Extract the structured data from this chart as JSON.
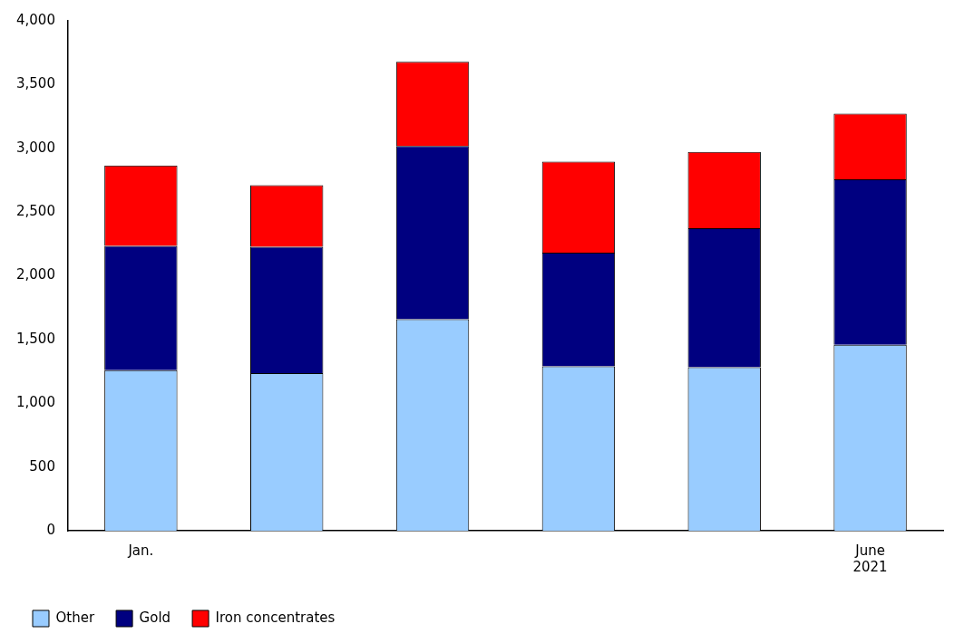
{
  "chart_data": {
    "type": "bar",
    "stacked": true,
    "categories": [
      "Jan.",
      null,
      null,
      null,
      null,
      "June\n2021"
    ],
    "series": [
      {
        "name": "Other",
        "color": "#99ccff",
        "values": [
          1260,
          1237,
          1659,
          1290,
          1283,
          1459
        ]
      },
      {
        "name": "Gold",
        "color": "#000080",
        "values": [
          975,
          990,
          1359,
          891,
          1090,
          1298
        ]
      },
      {
        "name": "Iron concentrates",
        "color": "#ff0000",
        "values": [
          630,
          484,
          661,
          714,
          599,
          515
        ]
      }
    ],
    "ylim": [
      0,
      4000
    ],
    "yticks": [
      {
        "value": 0,
        "label": "0"
      },
      {
        "value": 500,
        "label": "500"
      },
      {
        "value": 1000,
        "label": "1,000"
      },
      {
        "value": 1500,
        "label": "1,500"
      },
      {
        "value": 2000,
        "label": "2,000"
      },
      {
        "value": 2500,
        "label": "2,500"
      },
      {
        "value": 3000,
        "label": "3,000"
      },
      {
        "value": 3500,
        "label": "3,500"
      },
      {
        "value": 4000,
        "label": "4,000"
      }
    ],
    "grid": false,
    "legend": "bottom"
  }
}
